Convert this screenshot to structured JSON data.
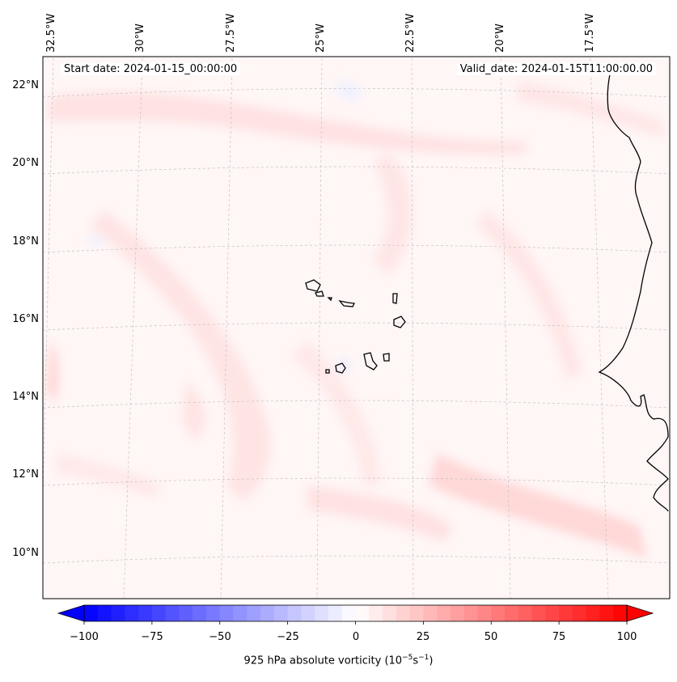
{
  "map": {
    "start_date": "Start date: 2024-01-15_00:00:00",
    "valid_date": "Valid_date: 2024-01-15T11:00:00.00",
    "field": "925 hPa absolute vorticity",
    "units_base": "10",
    "units_exp": "−5",
    "units_sunit": "s",
    "units_sexp": "−1",
    "lon_labels": [
      "32.5°W",
      "30°W",
      "27.5°W",
      "25°W",
      "22.5°W",
      "20°W",
      "17.5°W"
    ],
    "lat_labels": [
      "22°N",
      "20°N",
      "18°N",
      "16°N",
      "14°N",
      "12°N",
      "10°N"
    ],
    "features": [
      "Cabo Verde islands",
      "West African coastline"
    ]
  },
  "colorbar": {
    "min": -100,
    "max": 100,
    "ticks": [
      "−100",
      "−75",
      "−50",
      "−25",
      "0",
      "25",
      "50",
      "75",
      "100"
    ],
    "cmap": "bwr",
    "extend": "both",
    "colors": {
      "negative": "#0000ff",
      "neutral": "#ffffff",
      "positive": "#ff0000"
    }
  },
  "chart_data": {
    "type": "heatmap",
    "title": "",
    "variable": "925 hPa absolute vorticity",
    "units": "10^-5 s^-1",
    "lon_range": [
      -33,
      -16
    ],
    "lat_range": [
      9,
      23
    ],
    "value_range": [
      -100,
      100
    ],
    "typical_values": "mostly 0 to 15 (faint pink), small patches up to ~25"
  }
}
